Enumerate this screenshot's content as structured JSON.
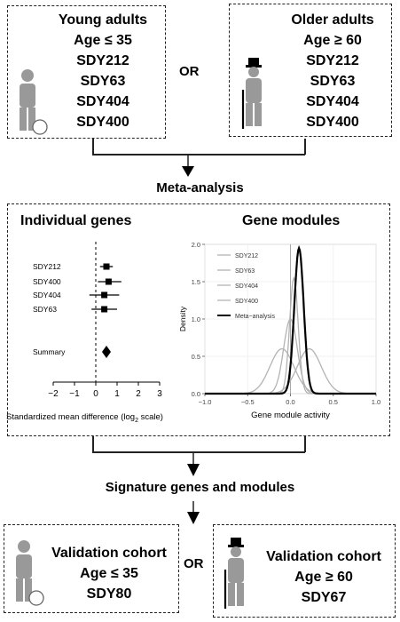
{
  "top": {
    "young": {
      "title": "Young adults",
      "age": "Age",
      "op": "≤",
      "num": "35",
      "studies": [
        "SDY212",
        "SDY63",
        "SDY404",
        "SDY400"
      ]
    },
    "older": {
      "title": "Older adults",
      "age": "Age",
      "op": "≥",
      "num": "60",
      "studies": [
        "SDY212",
        "SDY63",
        "SDY404",
        "SDY400"
      ]
    },
    "or_label": "OR"
  },
  "meta_label": "Meta-analysis",
  "individual": {
    "title": "Individual genes",
    "rows": [
      {
        "label": "SDY212",
        "est": 0.5,
        "lo": 0.2,
        "hi": 0.8
      },
      {
        "label": "SDY400",
        "est": 0.6,
        "lo": 0.1,
        "hi": 1.2
      },
      {
        "label": "SDY404",
        "est": 0.4,
        "lo": -0.3,
        "hi": 1.1
      },
      {
        "label": "SDY63",
        "est": 0.4,
        "lo": -0.2,
        "hi": 1.0
      }
    ],
    "summary": {
      "label": "Summary",
      "est": 0.5
    },
    "ticks": [
      "−2",
      "−1",
      "0",
      "1",
      "2",
      "3"
    ],
    "xlabel_pre": "Standardized mean difference (log",
    "xlabel_sub": "2",
    "xlabel_post": " scale)"
  },
  "modules": {
    "title": "Gene modules",
    "ylabel": "Density",
    "xlabel": "Gene module activity",
    "xticks": [
      "−1.0",
      "−0.5",
      "0.0",
      "0.5",
      "1.0"
    ],
    "yticks": [
      "0.0",
      "0.5",
      "1.0",
      "1.5",
      "2.0"
    ],
    "legend": [
      "SDY212",
      "SDY63",
      "SDY404",
      "SDY400",
      "Meta−analysis"
    ],
    "colors": {
      "studies": "#b3b3b3",
      "meta": "#000000"
    }
  },
  "chart_data": [
    {
      "type": "scatter",
      "title": "Individual genes",
      "xlabel": "Standardized mean difference (log2 scale)",
      "xlim": [
        -2,
        3
      ],
      "categories": [
        "SDY212",
        "SDY400",
        "SDY404",
        "SDY63",
        "Summary"
      ],
      "estimates": [
        0.5,
        0.6,
        0.4,
        0.4,
        0.5
      ],
      "ci_low": [
        0.2,
        0.1,
        -0.3,
        -0.2,
        null
      ],
      "ci_high": [
        0.8,
        1.2,
        1.1,
        1.0,
        null
      ]
    },
    {
      "type": "line",
      "title": "Gene modules",
      "xlabel": "Gene module activity",
      "ylabel": "Density",
      "xlim": [
        -1,
        1
      ],
      "ylim": [
        0,
        2
      ],
      "series": [
        {
          "name": "SDY212",
          "mean": -0.1,
          "sd": 0.14
        },
        {
          "name": "SDY63",
          "mean": 0.22,
          "sd": 0.14
        },
        {
          "name": "SDY404",
          "mean": 0.04,
          "sd": 0.05
        },
        {
          "name": "SDY400",
          "mean": 0.0,
          "sd": 0.08
        },
        {
          "name": "Meta−analysis",
          "mean": 0.1,
          "sd": 0.055
        }
      ]
    }
  ],
  "signature_label": "Signature genes and modules",
  "validation": {
    "young": {
      "title": "Validation cohort",
      "age": "Age",
      "op": "≤",
      "num": "35",
      "study": "SDY80"
    },
    "older": {
      "title": "Validation cohort",
      "age": "Age",
      "op": "≥",
      "num": "60",
      "study": "SDY67"
    },
    "or_label": "OR"
  }
}
